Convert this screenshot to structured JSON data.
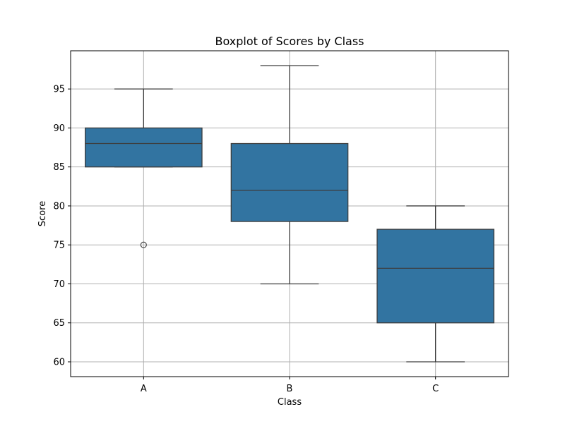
{
  "chart_data": {
    "type": "box",
    "title": "Boxplot of Scores by Class",
    "xlabel": "Class",
    "ylabel": "Score",
    "ylim": [
      58.1,
      99.9
    ],
    "yticks": [
      60,
      65,
      70,
      75,
      80,
      85,
      90,
      95
    ],
    "grid": true,
    "box_color": "#3274a1",
    "line_color": "#3d3d3d",
    "categories": [
      "A",
      "B",
      "C"
    ],
    "boxes": [
      {
        "category": "A",
        "whisker_low": 85,
        "q1": 85,
        "median": 88,
        "q3": 90,
        "whisker_high": 95,
        "outliers": [
          75
        ]
      },
      {
        "category": "B",
        "whisker_low": 70,
        "q1": 78,
        "median": 82,
        "q3": 88,
        "whisker_high": 98,
        "outliers": []
      },
      {
        "category": "C",
        "whisker_low": 60,
        "q1": 65,
        "median": 72,
        "q3": 77,
        "whisker_high": 80,
        "outliers": []
      }
    ]
  }
}
